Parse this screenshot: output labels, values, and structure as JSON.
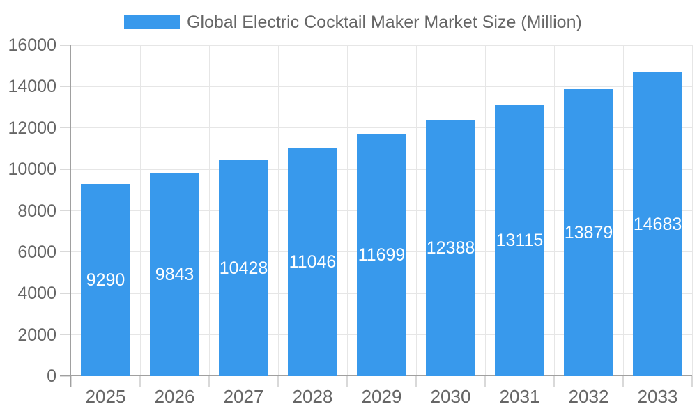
{
  "chart_data": {
    "type": "bar",
    "title": "Global Electric Cocktail Maker Market Size (Million)",
    "categories": [
      "2025",
      "2026",
      "2027",
      "2028",
      "2029",
      "2030",
      "2031",
      "2032",
      "2033"
    ],
    "values": [
      9290,
      9843,
      10428,
      11046,
      11699,
      12388,
      13115,
      13879,
      14683
    ],
    "xlabel": "",
    "ylabel": "",
    "ylim": [
      0,
      16000
    ],
    "yticks": [
      0,
      2000,
      4000,
      6000,
      8000,
      10000,
      12000,
      14000,
      16000
    ],
    "grid": "on",
    "legend_position": "top",
    "value_label_position": "inside-center",
    "colors": {
      "bar": "#3899EC",
      "grid": "#E6E6E6",
      "tick": "#D9D9D9",
      "axis": "#A0A0A0",
      "text": "#666666",
      "value_text": "#FFFFFF",
      "background": "#FFFFFF"
    }
  }
}
